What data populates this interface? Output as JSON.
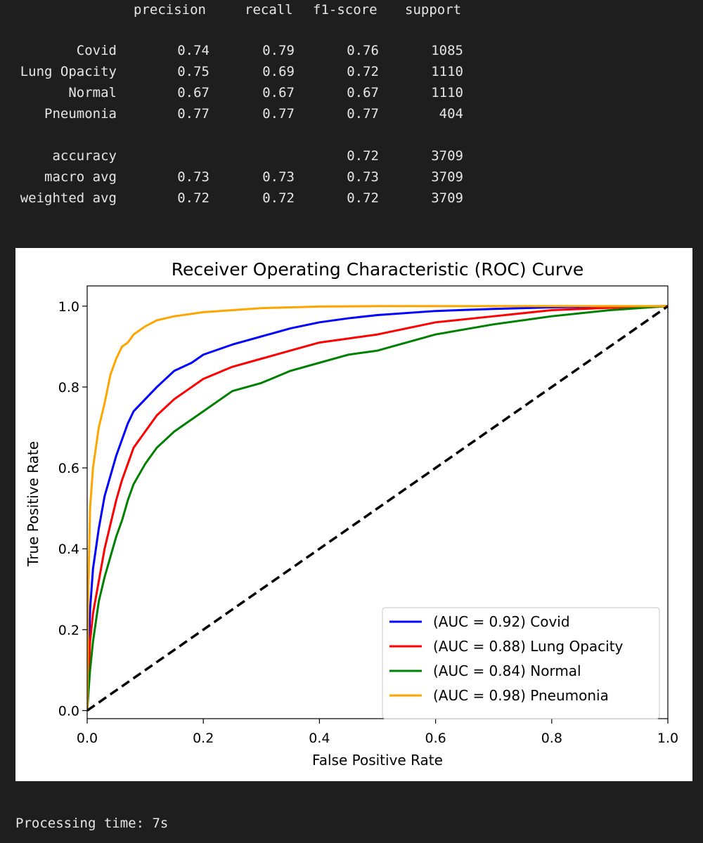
{
  "report": {
    "headers": [
      "precision",
      "recall",
      "f1-score",
      "support"
    ],
    "rows": [
      {
        "label": "Covid",
        "precision": "0.74",
        "recall": "0.79",
        "f1": "0.76",
        "support": "1085"
      },
      {
        "label": "Lung Opacity",
        "precision": "0.75",
        "recall": "0.69",
        "f1": "0.72",
        "support": "1110"
      },
      {
        "label": "Normal",
        "precision": "0.67",
        "recall": "0.67",
        "f1": "0.67",
        "support": "1110"
      },
      {
        "label": "Pneumonia",
        "precision": "0.77",
        "recall": "0.77",
        "f1": "0.77",
        "support": "404"
      },
      {
        "label": "accuracy",
        "precision": "",
        "recall": "",
        "f1": "0.72",
        "support": "3709"
      },
      {
        "label": "macro avg",
        "precision": "0.73",
        "recall": "0.73",
        "f1": "0.73",
        "support": "3709"
      },
      {
        "label": "weighted avg",
        "precision": "0.72",
        "recall": "0.72",
        "f1": "0.72",
        "support": "3709"
      }
    ]
  },
  "chart_data": {
    "type": "line",
    "title": "Receiver Operating Characteristic (ROC) Curve",
    "xlabel": "False Positive Rate",
    "ylabel": "True Positive Rate",
    "xlim": [
      0.0,
      1.0
    ],
    "ylim": [
      0.0,
      1.0
    ],
    "xticks": [
      "0.0",
      "0.2",
      "0.4",
      "0.6",
      "0.8",
      "1.0"
    ],
    "yticks": [
      "0.0",
      "0.2",
      "0.4",
      "0.6",
      "0.8",
      "1.0"
    ],
    "grid": false,
    "legend_position": "lower-right",
    "series": [
      {
        "name": "(AUC = 0.92) Covid",
        "color": "#0000ff",
        "x": [
          0,
          0.005,
          0.01,
          0.02,
          0.03,
          0.04,
          0.05,
          0.06,
          0.07,
          0.08,
          0.1,
          0.12,
          0.15,
          0.18,
          0.2,
          0.25,
          0.3,
          0.35,
          0.4,
          0.45,
          0.5,
          0.6,
          0.7,
          0.8,
          0.9,
          1.0
        ],
        "y": [
          0,
          0.25,
          0.35,
          0.45,
          0.53,
          0.58,
          0.63,
          0.67,
          0.71,
          0.74,
          0.77,
          0.8,
          0.84,
          0.86,
          0.88,
          0.905,
          0.925,
          0.945,
          0.96,
          0.97,
          0.978,
          0.988,
          0.993,
          0.997,
          0.999,
          1.0
        ]
      },
      {
        "name": "(AUC = 0.88) Lung Opacity",
        "color": "#ff0000",
        "x": [
          0,
          0.005,
          0.01,
          0.02,
          0.03,
          0.04,
          0.05,
          0.06,
          0.07,
          0.08,
          0.1,
          0.12,
          0.15,
          0.18,
          0.2,
          0.25,
          0.3,
          0.35,
          0.4,
          0.45,
          0.5,
          0.55,
          0.6,
          0.7,
          0.8,
          0.9,
          1.0
        ],
        "y": [
          0,
          0.17,
          0.24,
          0.32,
          0.4,
          0.46,
          0.52,
          0.57,
          0.61,
          0.65,
          0.69,
          0.73,
          0.77,
          0.8,
          0.82,
          0.85,
          0.87,
          0.89,
          0.91,
          0.92,
          0.93,
          0.945,
          0.96,
          0.975,
          0.99,
          0.996,
          1.0
        ]
      },
      {
        "name": "(AUC = 0.84) Normal",
        "color": "#008000",
        "x": [
          0,
          0.005,
          0.01,
          0.02,
          0.03,
          0.04,
          0.05,
          0.06,
          0.07,
          0.08,
          0.1,
          0.12,
          0.15,
          0.18,
          0.2,
          0.25,
          0.3,
          0.35,
          0.4,
          0.45,
          0.5,
          0.55,
          0.6,
          0.7,
          0.8,
          0.9,
          1.0
        ],
        "y": [
          0,
          0.1,
          0.17,
          0.27,
          0.33,
          0.38,
          0.43,
          0.47,
          0.52,
          0.56,
          0.61,
          0.65,
          0.69,
          0.72,
          0.74,
          0.79,
          0.81,
          0.84,
          0.86,
          0.88,
          0.89,
          0.91,
          0.93,
          0.955,
          0.975,
          0.99,
          1.0
        ]
      },
      {
        "name": "(AUC = 0.98) Pneumonia",
        "color": "#ffa500",
        "x": [
          0,
          0.002,
          0.005,
          0.01,
          0.015,
          0.02,
          0.03,
          0.04,
          0.05,
          0.06,
          0.07,
          0.08,
          0.1,
          0.12,
          0.15,
          0.2,
          0.25,
          0.3,
          0.4,
          0.5,
          0.6,
          0.8,
          1.0
        ],
        "y": [
          0,
          0.3,
          0.5,
          0.6,
          0.65,
          0.7,
          0.76,
          0.83,
          0.87,
          0.9,
          0.91,
          0.93,
          0.95,
          0.965,
          0.975,
          0.985,
          0.99,
          0.995,
          0.999,
          1.0,
          1.0,
          1.0,
          1.0
        ]
      },
      {
        "name": "",
        "color": "#000000",
        "dashed": true,
        "x": [
          0,
          1
        ],
        "y": [
          0,
          1
        ]
      }
    ]
  },
  "status": {
    "text": "Processing time: 7s"
  }
}
